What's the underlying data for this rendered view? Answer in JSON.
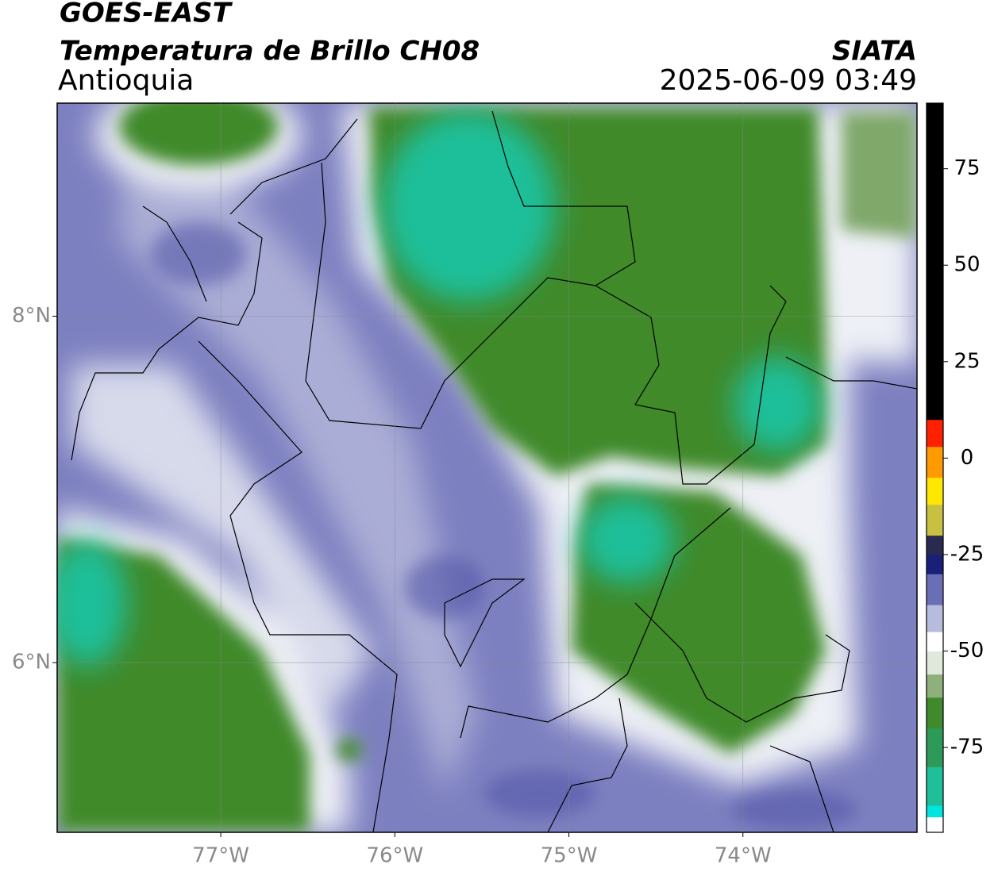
{
  "header": {
    "title": "GOES-EAST",
    "subtitle": "Temperatura de Brillo CH08",
    "region": "Antioquia",
    "source": "SIATA",
    "datetime": "2025-06-09 03:49"
  },
  "chart_data": {
    "type": "map",
    "xlim": [
      -77.94,
      -73.0
    ],
    "ylim": [
      5.02,
      9.23
    ],
    "xticks": [
      {
        "value": -77,
        "label": "77°W"
      },
      {
        "value": -76,
        "label": "76°W"
      },
      {
        "value": -75,
        "label": "75°W"
      },
      {
        "value": -74,
        "label": "74°W"
      }
    ],
    "yticks": [
      {
        "value": 8,
        "label": "8°N"
      },
      {
        "value": 6,
        "label": "6°N"
      }
    ],
    "grid": true,
    "colorbar": {
      "lim": [
        -97,
        92
      ],
      "ticks": [
        75,
        50,
        25,
        0,
        -25,
        -50,
        -75
      ],
      "bands": [
        [
          -97,
          -93,
          "#ffffff"
        ],
        [
          -93,
          -90,
          "#00e5e0"
        ],
        [
          -90,
          -80,
          "#1fbf9a"
        ],
        [
          -80,
          -70,
          "#2e9a5a"
        ],
        [
          -70,
          -62,
          "#3f8a2c"
        ],
        [
          -62,
          -56,
          "#8fb07a"
        ],
        [
          -56,
          -50,
          "#e0e8dc"
        ],
        [
          -50,
          -45,
          "#ffffff"
        ],
        [
          -45,
          -38,
          "#b8bcdc"
        ],
        [
          -38,
          -30,
          "#6a6fb5"
        ],
        [
          -30,
          -25,
          "#1a1f7a"
        ],
        [
          -25,
          -20,
          "#2a2a50"
        ],
        [
          -20,
          -12,
          "#c8c040"
        ],
        [
          -12,
          -5,
          "#ffe800"
        ],
        [
          -5,
          3,
          "#ff9a00"
        ],
        [
          3,
          10,
          "#ff2000"
        ],
        [
          10,
          92,
          "#000000"
        ]
      ]
    }
  }
}
